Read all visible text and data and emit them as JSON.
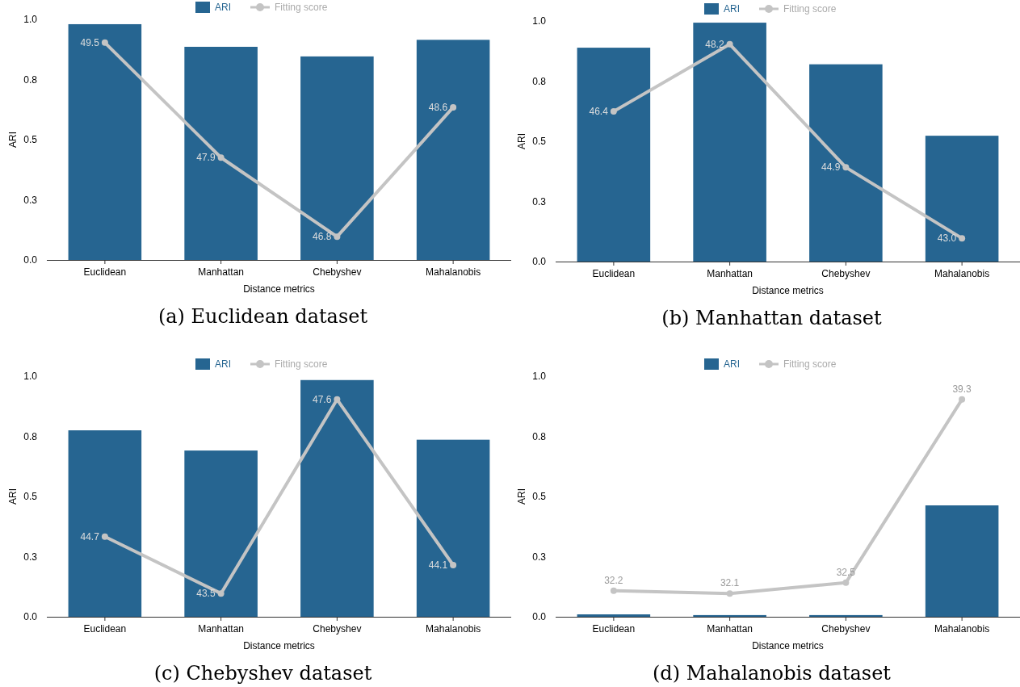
{
  "chart_data": [
    {
      "type": "bar",
      "title": "(a) Euclidean dataset",
      "xlabel": "Distance metrics",
      "ylabel": "ARI",
      "categories": [
        "Euclidean",
        "Manhattan",
        "Chebyshev",
        "Mahalanobis"
      ],
      "legend": "top",
      "ylim": [
        0,
        1
      ],
      "yticks": [
        {
          "value": 0,
          "label": "0.0"
        },
        {
          "value": 0.25,
          "label": "0.3"
        },
        {
          "value": 0.5,
          "label": "0.5"
        },
        {
          "value": 0.75,
          "label": "0.8"
        },
        {
          "value": 1,
          "label": "1.0"
        }
      ],
      "marker": "circle",
      "series": [
        {
          "name": "ARI",
          "color": "#266591",
          "values": [
            0.98,
            0.886,
            0.846,
            0.915
          ]
        },
        {
          "name": "Fitting score",
          "type": "line",
          "axis": "y2",
          "color": "#c4c4c4",
          "values": [
            49.5,
            47.9,
            46.8,
            48.6
          ],
          "value_labels": [
            "49.5",
            "47.9",
            "46.8",
            "48.6"
          ]
        }
      ]
    },
    {
      "type": "bar",
      "title": "(b) Manhattan dataset",
      "xlabel": "Distance metrics",
      "ylabel": "ARI",
      "categories": [
        "Euclidean",
        "Manhattan",
        "Chebyshev",
        "Mahalanobis"
      ],
      "legend": "top",
      "ylim": [
        0,
        1
      ],
      "yticks": [
        {
          "value": 0,
          "label": "0.0"
        },
        {
          "value": 0.25,
          "label": "0.3"
        },
        {
          "value": 0.5,
          "label": "0.5"
        },
        {
          "value": 0.75,
          "label": "0.8"
        },
        {
          "value": 1,
          "label": "1.0"
        }
      ],
      "marker": "circle",
      "series": [
        {
          "name": "ARI",
          "color": "#266591",
          "values": [
            0.889,
            0.993,
            0.82,
            0.523
          ]
        },
        {
          "name": "Fitting score",
          "type": "line",
          "axis": "y2",
          "color": "#c4c4c4",
          "values": [
            46.4,
            48.2,
            44.9,
            43.0
          ],
          "value_labels": [
            "46.4",
            "48.2",
            "44.9",
            "43.0"
          ]
        }
      ]
    },
    {
      "type": "bar",
      "title": "(c) Chebyshev dataset",
      "xlabel": "Distance metrics",
      "ylabel": "ARI",
      "categories": [
        "Euclidean",
        "Manhattan",
        "Chebyshev",
        "Mahalanobis"
      ],
      "legend": "top",
      "ylim": [
        0,
        1
      ],
      "yticks": [
        {
          "value": 0,
          "label": "0.0"
        },
        {
          "value": 0.25,
          "label": "0.3"
        },
        {
          "value": 0.5,
          "label": "0.5"
        },
        {
          "value": 0.75,
          "label": "0.8"
        },
        {
          "value": 1,
          "label": "1.0"
        }
      ],
      "marker": "circle",
      "series": [
        {
          "name": "ARI",
          "color": "#266591",
          "values": [
            0.775,
            0.691,
            0.984,
            0.736
          ]
        },
        {
          "name": "Fitting score",
          "type": "line",
          "axis": "y2",
          "color": "#c4c4c4",
          "values": [
            44.7,
            43.5,
            47.6,
            44.1
          ],
          "value_labels": [
            "44.7",
            "43.5",
            "47.6",
            "44.1"
          ]
        }
      ]
    },
    {
      "type": "bar",
      "title": "(d) Mahalanobis dataset",
      "xlabel": "Distance metrics",
      "ylabel": "ARI",
      "categories": [
        "Euclidean",
        "Manhattan",
        "Chebyshev",
        "Mahalanobis"
      ],
      "legend": "top",
      "ylim": [
        0,
        1
      ],
      "yticks": [
        {
          "value": 0,
          "label": "0.0"
        },
        {
          "value": 0.25,
          "label": "0.3"
        },
        {
          "value": 0.5,
          "label": "0.5"
        },
        {
          "value": 0.75,
          "label": "0.8"
        },
        {
          "value": 1,
          "label": "1.0"
        }
      ],
      "marker": "circle",
      "series": [
        {
          "name": "ARI",
          "color": "#266591",
          "values": [
            0.01,
            0.007,
            0.007,
            0.463
          ]
        },
        {
          "name": "Fitting score",
          "type": "line",
          "axis": "y2",
          "color": "#c4c4c4",
          "values": [
            32.2,
            32.1,
            32.5,
            39.3
          ],
          "value_labels": [
            "32.2",
            "32.1",
            "32.5",
            "39.3"
          ]
        }
      ]
    }
  ]
}
